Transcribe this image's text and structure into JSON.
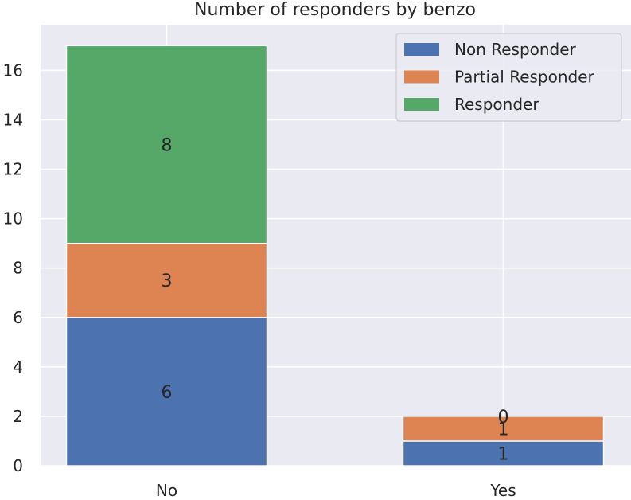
{
  "chart_data": {
    "type": "bar",
    "stacked": true,
    "title": "Number of responders by benzo",
    "xlabel": "",
    "ylabel": "",
    "categories": [
      "No",
      "Yes"
    ],
    "series": [
      {
        "name": "Non Responder",
        "values": [
          6,
          1
        ],
        "color": "#4c72b0"
      },
      {
        "name": "Partial Responder",
        "values": [
          3,
          1
        ],
        "color": "#dd8452"
      },
      {
        "name": "Responder",
        "values": [
          8,
          0
        ],
        "color": "#55a868"
      }
    ],
    "ylim": [
      0,
      17.85
    ],
    "yticks": [
      0,
      2,
      4,
      6,
      8,
      10,
      12,
      14,
      16
    ],
    "grid": true,
    "legend_position": "top-right"
  }
}
